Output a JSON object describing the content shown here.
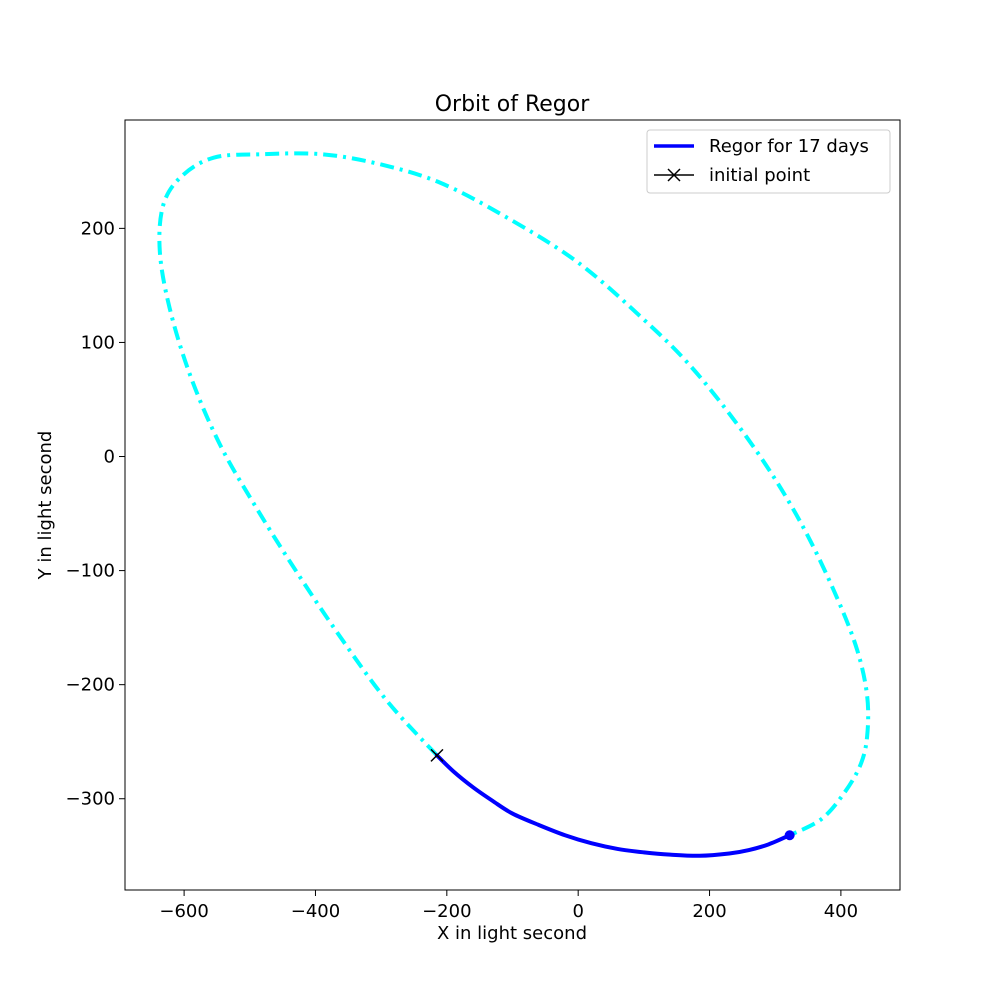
{
  "chart_data": {
    "type": "line",
    "title": "Orbit of Regor",
    "xlabel": "X in light second",
    "ylabel": "Y in light second",
    "xlim": [
      -690,
      490
    ],
    "ylim": [
      -380,
      295
    ],
    "xticks": [
      -600,
      -400,
      -200,
      0,
      200,
      400
    ],
    "yticks": [
      -300,
      -200,
      -100,
      0,
      100,
      200
    ],
    "xtick_labels": [
      "−600",
      "−400",
      "−200",
      "0",
      "200",
      "400"
    ],
    "ytick_labels": [
      "−300",
      "−200",
      "−100",
      "0",
      "100",
      "200"
    ],
    "grid": false,
    "legend_position": "top-right",
    "colors": {
      "orbit": "#00ffff",
      "trajectory": "#0000ff",
      "initial": "#000000"
    },
    "series": [
      {
        "name": "",
        "style": "dash-dot",
        "x": [
          -215,
          -290,
          -360,
          -430,
          -490,
          -545,
          -590,
          -622,
          -637,
          -632,
          -605,
          -555,
          -480,
          -390,
          -300,
          -210,
          -110,
          0,
          100,
          170,
          240,
          300,
          350,
          395,
          425,
          440,
          440,
          430,
          405,
          370,
          322
        ],
        "y": [
          -262,
          -215,
          -160,
          -100,
          -45,
          10,
          70,
          130,
          180,
          220,
          245,
          262,
          265,
          265,
          256,
          240,
          210,
          170,
          120,
          80,
          30,
          -20,
          -70,
          -125,
          -170,
          -210,
          -245,
          -270,
          -295,
          -318,
          -332
        ]
      },
      {
        "name": "Regor for 17 days",
        "style": "solid",
        "x": [
          -215,
          -190,
          -160,
          -130,
          -100,
          -60,
          -20,
          20,
          60,
          100,
          140,
          185,
          230,
          260,
          290,
          322
        ],
        "y": [
          -262,
          -276,
          -290,
          -302,
          -313,
          -323,
          -332,
          -339,
          -344,
          -347,
          -349,
          -350,
          -348,
          -345,
          -340,
          -332
        ]
      }
    ],
    "markers": [
      {
        "name": "initial point",
        "x": -215,
        "y": -262,
        "symbol": "x"
      },
      {
        "name": "",
        "x": 322,
        "y": -332,
        "symbol": "dot"
      }
    ],
    "legend": [
      {
        "label": "Regor for 17 days",
        "style": "solid-line"
      },
      {
        "label": "initial point",
        "style": "line-with-x"
      }
    ]
  }
}
